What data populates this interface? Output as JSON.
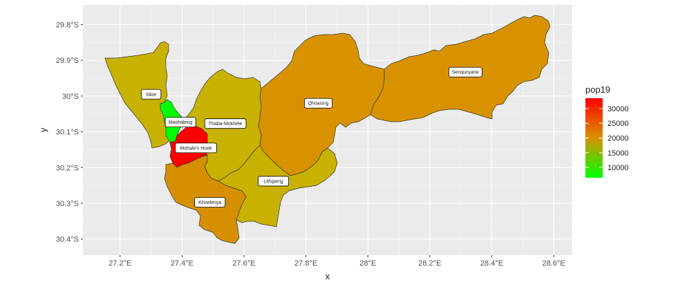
{
  "chart_data": {
    "type": "choropleth map",
    "xlabel": "x",
    "ylabel": "y",
    "x_ticks": [
      "27.2°E",
      "27.4°E",
      "27.6°E",
      "27.8°E",
      "28°E",
      "28.2°E",
      "28.4°E",
      "28.6°E"
    ],
    "x_tick_values": [
      27.2,
      27.4,
      27.6,
      27.8,
      28.0,
      28.2,
      28.4,
      28.6
    ],
    "y_ticks": [
      "29.8°S",
      "29.9°S",
      "30°S",
      "30.1°S",
      "30.2°S",
      "30.3°S",
      "30.4°S"
    ],
    "y_tick_values": [
      -29.8,
      -29.9,
      -30.0,
      -30.1,
      -30.2,
      -30.3,
      -30.4
    ],
    "xlim": [
      27.08,
      28.66
    ],
    "ylim": [
      -30.445,
      -29.745
    ],
    "grid": true,
    "legend": {
      "title": "pop19",
      "ticks": [
        10000,
        15000,
        20000,
        25000,
        30000
      ],
      "tick_labels": [
        "10000",
        "15000",
        "20000",
        "25000",
        "30000"
      ],
      "range": [
        6500,
        33500
      ],
      "gradient": [
        "#00ff00",
        "#d89200",
        "#ff0000"
      ],
      "position": "right"
    },
    "regions": [
      {
        "name": "Siloe",
        "pop19": 21000,
        "label_lon": 27.3,
        "label_lat": -29.995,
        "color": "#c8b100"
      },
      {
        "name": "Mashaleng",
        "pop19": 7000,
        "label_lon": 27.395,
        "label_lat": -30.073,
        "color": "#00ff00"
      },
      {
        "name": "Thaba-Mokhele",
        "pop19": 21000,
        "label_lon": 27.54,
        "label_lat": -30.077,
        "color": "#c8b100"
      },
      {
        "name": "Mohale's Hoek",
        "pop19": 33000,
        "label_lon": 27.445,
        "label_lat": -30.145,
        "color": "#ff0000"
      },
      {
        "name": "Qhoasing",
        "pop19": 24000,
        "label_lon": 27.84,
        "label_lat": -30.02,
        "color": "#d89200"
      },
      {
        "name": "Senqunyane",
        "pop19": 24000,
        "label_lon": 28.315,
        "label_lat": -29.933,
        "color": "#d89200"
      },
      {
        "name": "Lithipeng",
        "pop19": 21000,
        "label_lon": 27.695,
        "label_lat": -30.238,
        "color": "#c8b100"
      },
      {
        "name": "Khoelenya",
        "pop19": 24500,
        "label_lon": 27.49,
        "label_lat": -30.297,
        "color": "#d58f00"
      }
    ]
  }
}
